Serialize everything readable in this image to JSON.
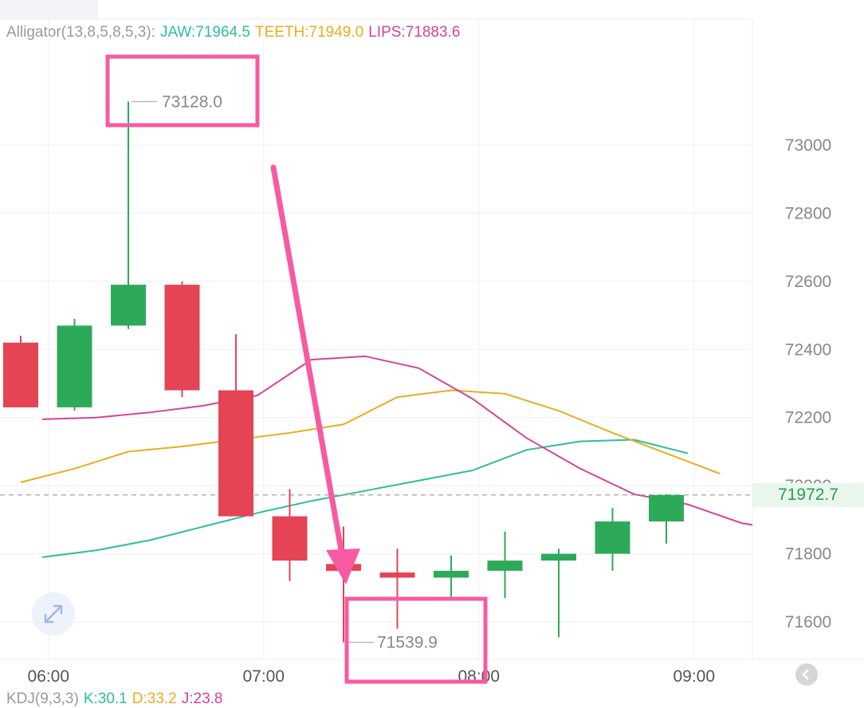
{
  "indicator": {
    "label": "Alligator(13,8,5,8,5,3):",
    "jaw": "JAW:71964.5",
    "teeth": "TEETH:71949.0",
    "lips": "LIPS:71883.6"
  },
  "kdj": {
    "label": "KDJ(9,3,3)",
    "k": "K:30.1",
    "d": "D:33.2",
    "j": "J:23.8"
  },
  "current_price_label": "71972.7",
  "high_label": "73128.0",
  "low_label": "71539.9",
  "colors": {
    "up": "#2daa59",
    "down": "#e44453",
    "jaw": "#2bbf9e",
    "teeth": "#e9ad1e",
    "lips": "#d4459b",
    "annotation": "#f75aa2",
    "grid": "#efefef",
    "axis_text": "#888888"
  },
  "icons": {
    "expand": "expand-arrows-icon",
    "corner": "collapse-chevron-icon"
  },
  "chart_data": {
    "type": "candlestick",
    "x_ticks": [
      "06:00",
      "07:00",
      "08:00",
      "09:00"
    ],
    "y_ticks": [
      71600,
      71800,
      72000,
      72200,
      72400,
      72600,
      72800,
      73000
    ],
    "ylim": [
      71500,
      73400
    ],
    "candles": [
      {
        "open": 72420,
        "high": 72440,
        "low": 72230,
        "close": 72230
      },
      {
        "open": 72230,
        "high": 72490,
        "low": 72220,
        "close": 72470
      },
      {
        "open": 72470,
        "high": 73128.0,
        "low": 72460,
        "close": 72590
      },
      {
        "open": 72590,
        "high": 72600,
        "low": 72260,
        "close": 72280
      },
      {
        "open": 72280,
        "high": 72445,
        "low": 71910,
        "close": 71910
      },
      {
        "open": 71910,
        "high": 71990,
        "low": 71720,
        "close": 71780
      },
      {
        "open": 71770,
        "high": 71880,
        "low": 71539.9,
        "close": 71750
      },
      {
        "open": 71745,
        "high": 71815,
        "low": 71580,
        "close": 71730
      },
      {
        "open": 71730,
        "high": 71795,
        "low": 71670,
        "close": 71750
      },
      {
        "open": 71750,
        "high": 71865,
        "low": 71670,
        "close": 71780
      },
      {
        "open": 71780,
        "high": 71815,
        "low": 71555,
        "close": 71800
      },
      {
        "open": 71800,
        "high": 71935,
        "low": 71750,
        "close": 71895
      },
      {
        "open": 71895,
        "high": 71975,
        "low": 71830,
        "close": 71972.7
      }
    ],
    "x_tick_index": [
      1,
      5,
      9,
      13
    ],
    "series": [
      {
        "key": "jaw",
        "values": [
          71790,
          71810,
          71840,
          71880,
          71920,
          71955,
          71985,
          72015,
          72045,
          72105,
          72130,
          72135,
          72095
        ]
      },
      {
        "key": "teeth",
        "values": [
          72010,
          72050,
          72100,
          72115,
          72135,
          72155,
          72180,
          72260,
          72280,
          72270,
          72220,
          72155,
          72095,
          72035
        ]
      },
      {
        "key": "lips",
        "values": [
          72195,
          72200,
          72215,
          72235,
          72265,
          72370,
          72380,
          72345,
          72255,
          72140,
          72050,
          71975,
          71945,
          71890,
          71885
        ]
      }
    ],
    "series_start": [
      0.4,
      0,
      0.4
    ],
    "current_price": 71972.7
  }
}
